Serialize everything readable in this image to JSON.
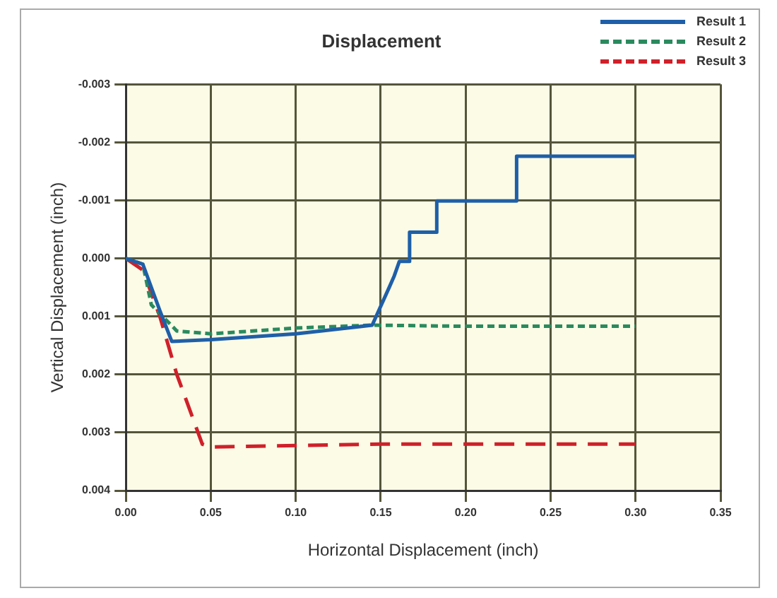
{
  "chart_data": {
    "type": "line",
    "title": "Displacement",
    "xlabel": "Horizontal Displacement (inch)",
    "ylabel": "Vertical Displacement (inch)",
    "xlim": [
      0,
      0.35
    ],
    "xticks": [
      {
        "value": 0,
        "label": "0.00"
      },
      {
        "value": 0.05,
        "label": "0.05"
      },
      {
        "value": 0.1,
        "label": "0.10"
      },
      {
        "value": 0.15,
        "label": "0.15"
      },
      {
        "value": 0.2,
        "label": "0.20"
      },
      {
        "value": 0.25,
        "label": "0.25"
      },
      {
        "value": 0.3,
        "label": "0.30"
      },
      {
        "value": 0.35,
        "label": "0.35"
      }
    ],
    "ylim": [
      0.004,
      -0.003
    ],
    "yticks": [
      {
        "value": -0.003,
        "label": "-0.003"
      },
      {
        "value": -0.002,
        "label": "-0.002"
      },
      {
        "value": -0.001,
        "label": "-0.001"
      },
      {
        "value": 0,
        "label": "0.000"
      },
      {
        "value": 0.001,
        "label": "0.001"
      },
      {
        "value": 0.002,
        "label": "0.002"
      },
      {
        "value": 0.003,
        "label": "0.003"
      },
      {
        "value": 0.004,
        "label": "0.004"
      }
    ],
    "grid": true,
    "legend": "top right",
    "marker": "none",
    "series": [
      {
        "name": "Result 1",
        "color": "#1f5fa8",
        "line_style": "solid",
        "x": [
          0,
          0.01,
          0.02,
          0.027,
          0.05,
          0.1,
          0.145,
          0.155,
          0.158,
          0.161,
          0.165,
          0.167,
          0.167,
          0.183,
          0.183,
          0.23,
          0.23,
          0.3
        ],
        "values": [
          0,
          0.0001,
          0.0009,
          0.00143,
          0.0014,
          0.0013,
          0.00115,
          0.0005,
          0.0003,
          5e-05,
          5e-05,
          5e-05,
          -0.00045,
          -0.00045,
          -0.00099,
          -0.00099,
          -0.00176,
          -0.00176
        ]
      },
      {
        "name": "Result 2",
        "color": "#2a8a5e",
        "line_style": "dotted",
        "x": [
          0,
          0.01,
          0.015,
          0.03,
          0.05,
          0.1,
          0.145,
          0.2,
          0.3
        ],
        "values": [
          0,
          0.0001,
          0.0008,
          0.00125,
          0.0013,
          0.0012,
          0.00115,
          0.00117,
          0.00117
        ]
      },
      {
        "name": "Result 3",
        "color": "#d0202a",
        "line_style": "dashed",
        "x": [
          0,
          0.01,
          0.02,
          0.03,
          0.045,
          0.05,
          0.15,
          0.3
        ],
        "values": [
          0,
          0.0002,
          0.001,
          0.002,
          0.0032,
          0.00325,
          0.0032,
          0.0032
        ]
      }
    ]
  }
}
